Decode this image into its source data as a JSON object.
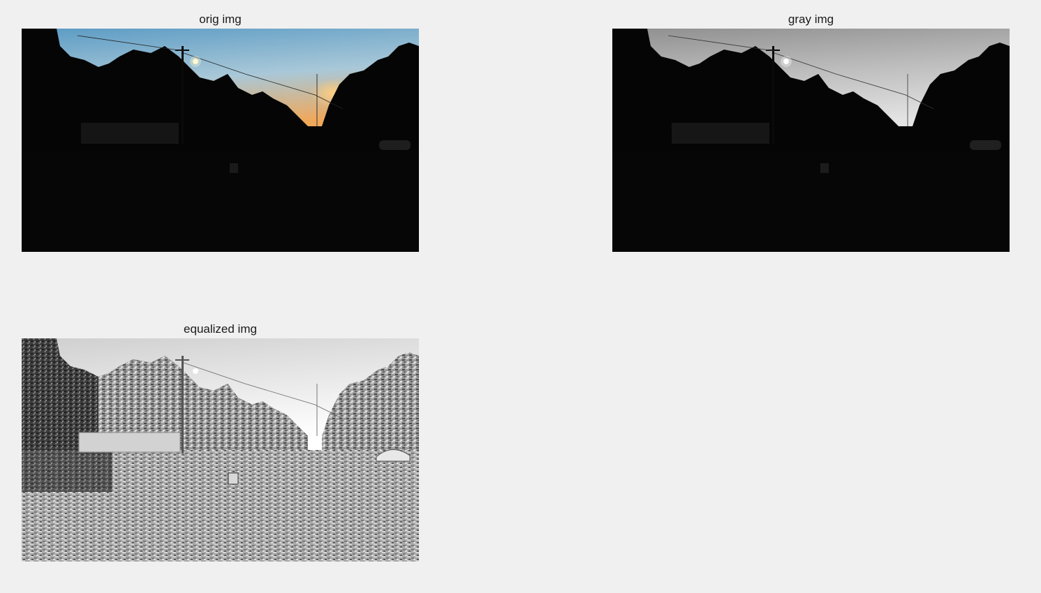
{
  "figure": {
    "background": "#f0f0f0",
    "subplots": [
      {
        "id": "orig",
        "title": "orig img",
        "content": "photo-dusk-color"
      },
      {
        "id": "gray",
        "title": "gray img",
        "content": "photo-dusk-grayscale"
      },
      {
        "id": "eq",
        "title": "equalized img",
        "content": "photo-dusk-histogram-equalized"
      }
    ]
  },
  "colors": {
    "sky_top_color": "#5b9bc4",
    "sky_horizon_color": "#f0a85a",
    "foreground_color": "#050505",
    "gray_sky_top": "#b4b4b4",
    "gray_sky_horizon": "#dedede",
    "eq_sky": "#ededed",
    "eq_trees": "#3a3a3a",
    "eq_ground": "#9a9a9a"
  }
}
